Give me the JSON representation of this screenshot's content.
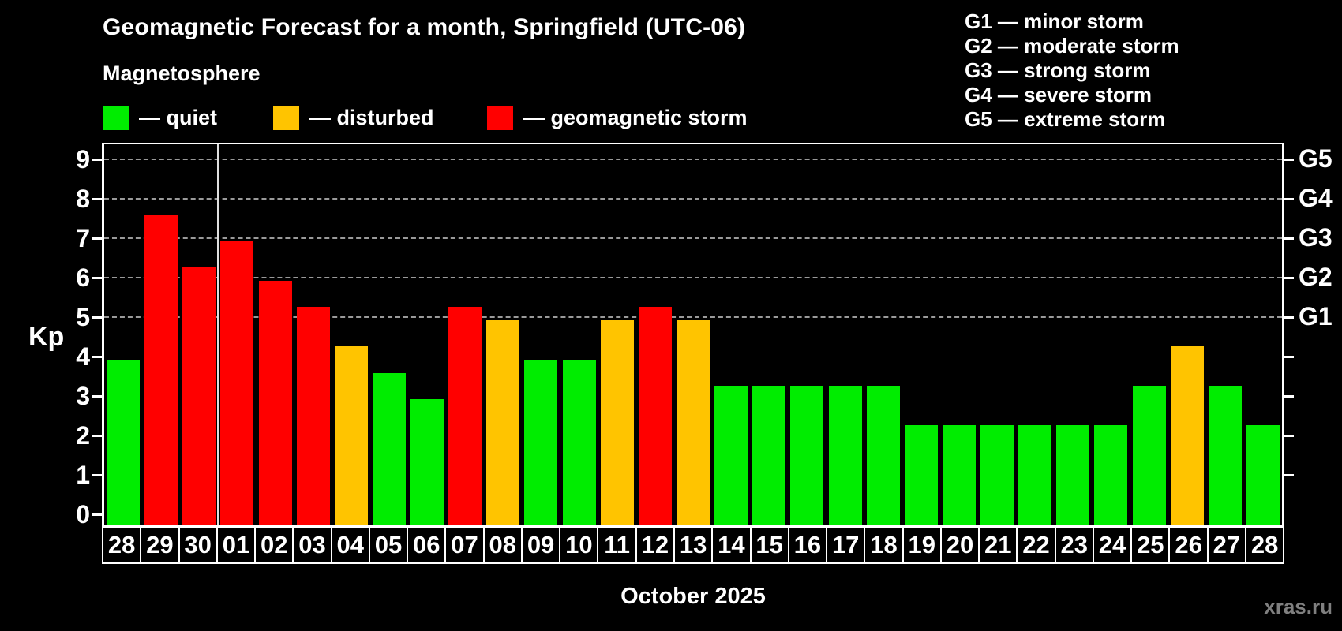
{
  "header": {
    "title": "Geomagnetic Forecast for a month, Springfield (UTC-06)",
    "subtitle": "Magnetosphere"
  },
  "legend": {
    "items": [
      {
        "status": "quiet",
        "label": "— quiet",
        "color": "#00ED00"
      },
      {
        "status": "disturbed",
        "label": "— disturbed",
        "color": "#FFC400"
      },
      {
        "status": "storm",
        "label": "— geomagnetic storm",
        "color": "#FF0000"
      }
    ]
  },
  "g_legend": {
    "lines": [
      "G1 — minor storm",
      "G2 — moderate storm",
      "G3 — strong storm",
      "G4 — severe storm",
      "G5 — extreme storm"
    ]
  },
  "axes": {
    "y_label": "Kp",
    "y_ticks": [
      0,
      1,
      2,
      3,
      4,
      5,
      6,
      7,
      8,
      9
    ],
    "right_scale": [
      {
        "kp": 5,
        "label": "G1"
      },
      {
        "kp": 6,
        "label": "G2"
      },
      {
        "kp": 7,
        "label": "G3"
      },
      {
        "kp": 8,
        "label": "G4"
      },
      {
        "kp": 9,
        "label": "G5"
      }
    ],
    "x_label": "October 2025"
  },
  "watermark": "xras.ru",
  "chart_data": {
    "type": "bar",
    "title": "Geomagnetic Forecast for a month, Springfield (UTC-06)",
    "subtitle": "Magnetosphere",
    "xlabel": "October 2025",
    "ylabel": "Kp",
    "ylim": [
      0,
      9.35
    ],
    "grid": "dashed-horizontal",
    "gridlines_at": [
      5,
      6,
      7,
      8,
      9
    ],
    "legend_position": "top-left",
    "separator_after_index": 2,
    "categories": [
      "28",
      "29",
      "30",
      "01",
      "02",
      "03",
      "04",
      "05",
      "06",
      "07",
      "08",
      "09",
      "10",
      "11",
      "12",
      "13",
      "14",
      "15",
      "16",
      "17",
      "18",
      "19",
      "20",
      "21",
      "22",
      "23",
      "24",
      "25",
      "26",
      "27",
      "28"
    ],
    "values": [
      3.67,
      7.33,
      6.0,
      6.67,
      5.67,
      5.0,
      4.0,
      3.33,
      2.67,
      5.0,
      4.67,
      3.67,
      3.67,
      4.67,
      5.0,
      4.67,
      3.0,
      3.0,
      3.0,
      3.0,
      3.0,
      2.0,
      2.0,
      2.0,
      2.0,
      2.0,
      2.0,
      3.0,
      4.0,
      3.0,
      2.0
    ],
    "statuses": [
      "quiet",
      "storm",
      "storm",
      "storm",
      "storm",
      "storm",
      "disturbed",
      "quiet",
      "quiet",
      "storm",
      "disturbed",
      "quiet",
      "quiet",
      "disturbed",
      "storm",
      "disturbed",
      "quiet",
      "quiet",
      "quiet",
      "quiet",
      "quiet",
      "quiet",
      "quiet",
      "quiet",
      "quiet",
      "quiet",
      "quiet",
      "quiet",
      "disturbed",
      "quiet",
      "quiet"
    ],
    "colors": {
      "quiet": "#00ED00",
      "disturbed": "#FFC400",
      "storm": "#FF0000"
    },
    "right_scale_labels": {
      "5": "G1",
      "6": "G2",
      "7": "G3",
      "8": "G4",
      "9": "G5"
    }
  }
}
